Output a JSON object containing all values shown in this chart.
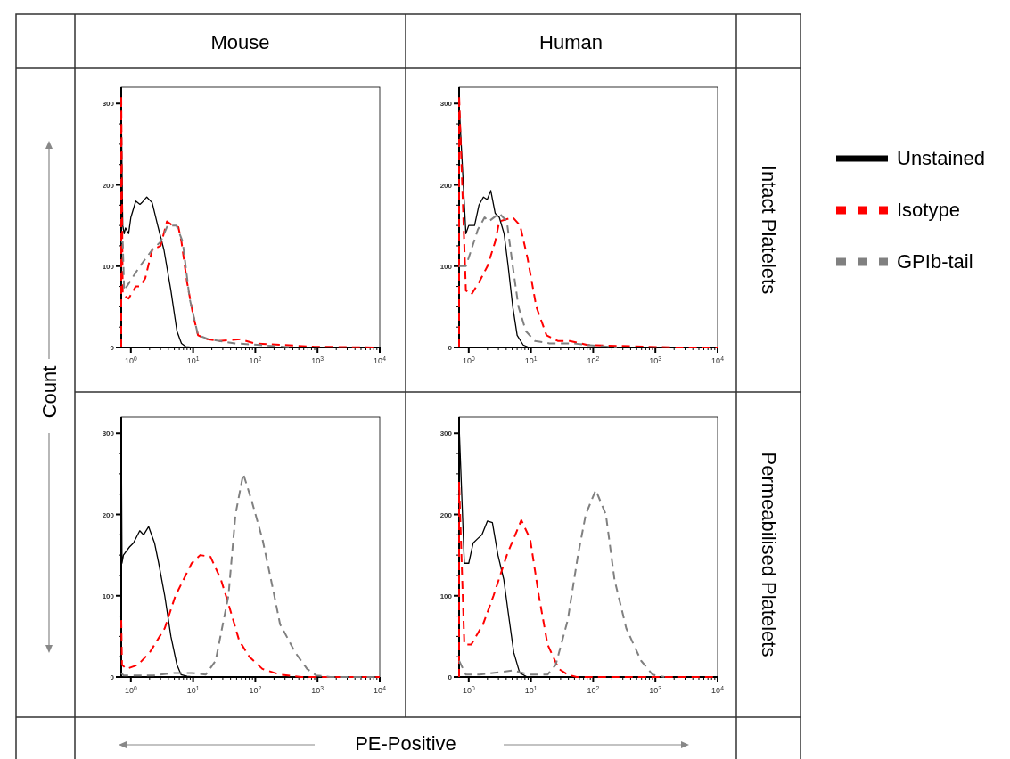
{
  "chart_data": [
    {
      "type": "line",
      "title": "Mouse",
      "ylabel": "Count",
      "xlim": [
        0.7,
        10000
      ],
      "ylim": [
        0,
        320
      ],
      "log": "x",
      "legend": false,
      "xticks": [
        {
          "value": 1,
          "label": "10$^{0}$"
        },
        {
          "value": 2,
          "label": null
        },
        {
          "value": 3,
          "label": null
        },
        {
          "value": 4,
          "label": null
        },
        {
          "value": 5,
          "label": null
        },
        {
          "value": 6,
          "label": null
        },
        {
          "value": 7,
          "label": null
        },
        {
          "value": 8,
          "label": null
        },
        {
          "value": 9,
          "label": null
        },
        {
          "value": 10,
          "label": "10$^{1}$"
        },
        {
          "value": 20,
          "label": null
        },
        {
          "value": 30,
          "label": null
        },
        {
          "value": 40,
          "label": null
        },
        {
          "value": 50,
          "label": null
        },
        {
          "value": 60,
          "label": null
        },
        {
          "value": 70,
          "label": null
        },
        {
          "value": 80,
          "label": null
        },
        {
          "value": 90,
          "label": null
        },
        {
          "value": 100,
          "label": "10$^{2}$"
        },
        {
          "value": 200,
          "label": null
        },
        {
          "value": 300,
          "label": null
        },
        {
          "value": 400,
          "label": null
        },
        {
          "value": 500,
          "label": null
        },
        {
          "value": 600,
          "label": null
        },
        {
          "value": 700,
          "label": null
        },
        {
          "value": 800,
          "label": null
        },
        {
          "value": 900,
          "label": null
        },
        {
          "value": 1000,
          "label": "10$^{3}$"
        },
        {
          "value": 2000,
          "label": null
        },
        {
          "value": 3000,
          "label": null
        },
        {
          "value": 4000,
          "label": null
        },
        {
          "value": 5000,
          "label": null
        },
        {
          "value": 6000,
          "label": null
        },
        {
          "value": 7000,
          "label": null
        },
        {
          "value": 8000,
          "label": null
        },
        {
          "value": 9000,
          "label": null
        },
        {
          "value": 10000,
          "label": "10$^{4}$"
        }
      ],
      "yticks": [
        0,
        {
          "value": 25,
          "label": null
        },
        {
          "value": 50,
          "label": null
        },
        {
          "value": 75,
          "label": null
        },
        100,
        {
          "value": 125,
          "label": null
        },
        {
          "value": 150,
          "label": null
        },
        {
          "value": 175,
          "label": null
        },
        200,
        {
          "value": 225,
          "label": null
        },
        {
          "value": 250,
          "label": null
        },
        {
          "value": 275,
          "label": null
        },
        300
      ],
      "series": [
        {
          "color": "#000000",
          "line_style": "solid",
          "x": [
            0.7,
            0.7,
            0.74,
            0.78,
            0.82,
            0.92,
            1.0,
            1.2,
            1.4,
            1.5,
            1.8,
            2.2,
            2.7,
            3.4,
            4.4,
            5.5,
            6.5,
            7.6,
            10
          ],
          "values": [
            0,
            300,
            150,
            140,
            147,
            140,
            160,
            180,
            176,
            178,
            185,
            178,
            150,
            120,
            70,
            20,
            5,
            1,
            0
          ]
        },
        {
          "color": "#ff0000",
          "line_style": "dashed",
          "x": [
            0.7,
            0.7,
            0.74,
            0.92,
            1.2,
            1.4,
            1.7,
            2.2,
            3.0,
            3.8,
            4.7,
            5.8,
            6.5,
            8.0,
            10,
            12,
            17,
            26,
            57,
            98,
            290,
            860,
            8900
          ],
          "values": [
            0,
            310,
            65,
            60,
            75,
            75,
            85,
            120,
            125,
            155,
            150,
            148,
            130,
            80,
            40,
            15,
            10,
            8,
            10,
            5,
            3,
            1,
            0
          ]
        },
        {
          "color": "#808080",
          "line_style": "dashed",
          "x": [
            0.7,
            0.74,
            0.78,
            1.4,
            2.2,
            3.0,
            3.9,
            5.4,
            6.8,
            8.8,
            12,
            18,
            47,
            120,
            400
          ],
          "values": [
            130,
            130,
            70,
            100,
            120,
            130,
            150,
            150,
            130,
            60,
            15,
            10,
            5,
            3,
            0
          ]
        }
      ]
    },
    {
      "type": "line",
      "title": "Human",
      "y2label": "Intact Platelets",
      "xlim": [
        0.7,
        10000
      ],
      "ylim": [
        0,
        320
      ],
      "log": "x",
      "legend": "right",
      "xticks": [
        {
          "value": 1,
          "label": "10$^{0}$"
        },
        {
          "value": 2,
          "label": null
        },
        {
          "value": 3,
          "label": null
        },
        {
          "value": 4,
          "label": null
        },
        {
          "value": 5,
          "label": null
        },
        {
          "value": 6,
          "label": null
        },
        {
          "value": 7,
          "label": null
        },
        {
          "value": 8,
          "label": null
        },
        {
          "value": 9,
          "label": null
        },
        {
          "value": 10,
          "label": "10$^{1}$"
        },
        {
          "value": 20,
          "label": null
        },
        {
          "value": 30,
          "label": null
        },
        {
          "value": 40,
          "label": null
        },
        {
          "value": 50,
          "label": null
        },
        {
          "value": 60,
          "label": null
        },
        {
          "value": 70,
          "label": null
        },
        {
          "value": 80,
          "label": null
        },
        {
          "value": 90,
          "label": null
        },
        {
          "value": 100,
          "label": "10$^{2}$"
        },
        {
          "value": 200,
          "label": null
        },
        {
          "value": 300,
          "label": null
        },
        {
          "value": 400,
          "label": null
        },
        {
          "value": 500,
          "label": null
        },
        {
          "value": 600,
          "label": null
        },
        {
          "value": 700,
          "label": null
        },
        {
          "value": 800,
          "label": null
        },
        {
          "value": 900,
          "label": null
        },
        {
          "value": 1000,
          "label": "10$^{3}$"
        },
        {
          "value": 2000,
          "label": null
        },
        {
          "value": 3000,
          "label": null
        },
        {
          "value": 4000,
          "label": null
        },
        {
          "value": 5000,
          "label": null
        },
        {
          "value": 6000,
          "label": null
        },
        {
          "value": 7000,
          "label": null
        },
        {
          "value": 8000,
          "label": null
        },
        {
          "value": 9000,
          "label": null
        },
        {
          "value": 10000,
          "label": "10$^{4}$"
        }
      ],
      "yticks": [
        0,
        {
          "value": 25,
          "label": null
        },
        {
          "value": 50,
          "label": null
        },
        {
          "value": 75,
          "label": null
        },
        100,
        {
          "value": 125,
          "label": null
        },
        {
          "value": 150,
          "label": null
        },
        {
          "value": 175,
          "label": null
        },
        200,
        {
          "value": 225,
          "label": null
        },
        {
          "value": 250,
          "label": null
        },
        {
          "value": 275,
          "label": null
        },
        300
      ],
      "series": [
        {
          "name": "Unstained",
          "color": "#000000",
          "line_style": "solid",
          "x": [
            0.7,
            0.7,
            0.9,
            1.0,
            1.24,
            1.46,
            1.72,
            1.98,
            2.26,
            2.66,
            3.1,
            3.7,
            4.3,
            5.1,
            6.0,
            7.5,
            9.3
          ],
          "values": [
            0,
            300,
            140,
            150,
            150,
            175,
            185,
            182,
            193,
            165,
            160,
            140,
            100,
            50,
            15,
            3,
            0
          ]
        },
        {
          "name": "Isotype",
          "color": "#ff0000",
          "line_style": "dashed",
          "x": [
            0.7,
            0.7,
            0.9,
            1.1,
            1.46,
            2.0,
            2.66,
            3.1,
            5.1,
            6.7,
            8.8,
            12.2,
            17.8,
            27,
            42,
            81,
            240,
            2100,
            10000
          ],
          "values": [
            0,
            310,
            70,
            65,
            80,
            100,
            130,
            155,
            160,
            150,
            110,
            50,
            15,
            8,
            8,
            3,
            2,
            0,
            0
          ]
        },
        {
          "name": "GPIb-tail",
          "color": "#808080",
          "line_style": "dashed",
          "x": [
            0.7,
            0.9,
            1.1,
            1.4,
            1.8,
            2.1,
            3.1,
            4.1,
            5.1,
            6.3,
            8.3,
            11.5,
            19.8,
            47,
            81,
            240
          ],
          "values": [
            100,
            100,
            120,
            145,
            160,
            155,
            165,
            155,
            100,
            50,
            20,
            8,
            5,
            5,
            3,
            0
          ]
        }
      ]
    },
    {
      "type": "line",
      "xlabel": "PE-Positive",
      "xlim": [
        0.7,
        10000
      ],
      "ylim": [
        0,
        320
      ],
      "log": "x",
      "legend": false,
      "xticks": [
        {
          "value": 1,
          "label": "10$^{0}$"
        },
        {
          "value": 2,
          "label": null
        },
        {
          "value": 3,
          "label": null
        },
        {
          "value": 4,
          "label": null
        },
        {
          "value": 5,
          "label": null
        },
        {
          "value": 6,
          "label": null
        },
        {
          "value": 7,
          "label": null
        },
        {
          "value": 8,
          "label": null
        },
        {
          "value": 9,
          "label": null
        },
        {
          "value": 10,
          "label": "10$^{1}$"
        },
        {
          "value": 20,
          "label": null
        },
        {
          "value": 30,
          "label": null
        },
        {
          "value": 40,
          "label": null
        },
        {
          "value": 50,
          "label": null
        },
        {
          "value": 60,
          "label": null
        },
        {
          "value": 70,
          "label": null
        },
        {
          "value": 80,
          "label": null
        },
        {
          "value": 90,
          "label": null
        },
        {
          "value": 100,
          "label": "10$^{2}$"
        },
        {
          "value": 200,
          "label": null
        },
        {
          "value": 300,
          "label": null
        },
        {
          "value": 400,
          "label": null
        },
        {
          "value": 500,
          "label": null
        },
        {
          "value": 600,
          "label": null
        },
        {
          "value": 700,
          "label": null
        },
        {
          "value": 800,
          "label": null
        },
        {
          "value": 900,
          "label": null
        },
        {
          "value": 1000,
          "label": "10$^{3}$"
        },
        {
          "value": 2000,
          "label": null
        },
        {
          "value": 3000,
          "label": null
        },
        {
          "value": 4000,
          "label": null
        },
        {
          "value": 5000,
          "label": null
        },
        {
          "value": 6000,
          "label": null
        },
        {
          "value": 7000,
          "label": null
        },
        {
          "value": 8000,
          "label": null
        },
        {
          "value": 9000,
          "label": null
        },
        {
          "value": 10000,
          "label": "10$^{4}$"
        }
      ],
      "yticks": [
        0,
        {
          "value": 25,
          "label": null
        },
        {
          "value": 50,
          "label": null
        },
        {
          "value": 75,
          "label": null
        },
        100,
        {
          "value": 125,
          "label": null
        },
        {
          "value": 150,
          "label": null
        },
        {
          "value": 175,
          "label": null
        },
        200,
        {
          "value": 225,
          "label": null
        },
        {
          "value": 250,
          "label": null
        },
        {
          "value": 275,
          "label": null
        },
        300
      ],
      "series": [
        {
          "color": "#000000",
          "line_style": "solid",
          "x": [
            0.7,
            0.7,
            0.72,
            0.76,
            0.95,
            1.1,
            1.39,
            1.6,
            1.93,
            2.4,
            2.8,
            3.5,
            4.4,
            5.5,
            6.4,
            8.0,
            10
          ],
          "values": [
            0,
            310,
            140,
            150,
            160,
            165,
            180,
            175,
            185,
            165,
            140,
            100,
            50,
            15,
            3,
            1,
            0
          ]
        },
        {
          "color": "#ff0000",
          "line_style": "dashed",
          "x": [
            0.7,
            0.72,
            0.85,
            1.3,
            2.0,
            3.5,
            5.2,
            9.5,
            13,
            19,
            28,
            37,
            55,
            80,
            130,
            250,
            550,
            10000
          ],
          "values": [
            70,
            15,
            10,
            15,
            30,
            60,
            100,
            140,
            150,
            148,
            120,
            90,
            45,
            25,
            10,
            3,
            0,
            0
          ]
        },
        {
          "color": "#808080",
          "line_style": "dashed",
          "x": [
            0.7,
            0.76,
            2.3,
            4.9,
            9.5,
            16,
            23,
            37,
            48,
            64,
            85,
            130,
            190,
            250,
            440,
            680,
            950,
            1600,
            10000
          ],
          "values": [
            5,
            2,
            2,
            5,
            5,
            3,
            20,
            100,
            200,
            250,
            220,
            170,
            110,
            65,
            30,
            10,
            2,
            0,
            0
          ]
        }
      ]
    },
    {
      "type": "line",
      "y2label": "Permeabilised Platelets",
      "xlim": [
        0.7,
        10000
      ],
      "ylim": [
        0,
        320
      ],
      "log": "x",
      "legend": false,
      "xticks": [
        {
          "value": 1,
          "label": "10$^{0}$"
        },
        {
          "value": 2,
          "label": null
        },
        {
          "value": 3,
          "label": null
        },
        {
          "value": 4,
          "label": null
        },
        {
          "value": 5,
          "label": null
        },
        {
          "value": 6,
          "label": null
        },
        {
          "value": 7,
          "label": null
        },
        {
          "value": 8,
          "label": null
        },
        {
          "value": 9,
          "label": null
        },
        {
          "value": 10,
          "label": "10$^{1}$"
        },
        {
          "value": 20,
          "label": null
        },
        {
          "value": 30,
          "label": null
        },
        {
          "value": 40,
          "label": null
        },
        {
          "value": 50,
          "label": null
        },
        {
          "value": 60,
          "label": null
        },
        {
          "value": 70,
          "label": null
        },
        {
          "value": 80,
          "label": null
        },
        {
          "value": 90,
          "label": null
        },
        {
          "value": 100,
          "label": "10$^{2}$"
        },
        {
          "value": 200,
          "label": null
        },
        {
          "value": 300,
          "label": null
        },
        {
          "value": 400,
          "label": null
        },
        {
          "value": 500,
          "label": null
        },
        {
          "value": 600,
          "label": null
        },
        {
          "value": 700,
          "label": null
        },
        {
          "value": 800,
          "label": null
        },
        {
          "value": 900,
          "label": null
        },
        {
          "value": 1000,
          "label": "10$^{3}$"
        },
        {
          "value": 2000,
          "label": null
        },
        {
          "value": 3000,
          "label": null
        },
        {
          "value": 4000,
          "label": null
        },
        {
          "value": 5000,
          "label": null
        },
        {
          "value": 6000,
          "label": null
        },
        {
          "value": 7000,
          "label": null
        },
        {
          "value": 8000,
          "label": null
        },
        {
          "value": 9000,
          "label": null
        },
        {
          "value": 10000,
          "label": "10$^{4}$"
        }
      ],
      "yticks": [
        0,
        {
          "value": 25,
          "label": null
        },
        {
          "value": 50,
          "label": null
        },
        {
          "value": 75,
          "label": null
        },
        100,
        {
          "value": 125,
          "label": null
        },
        {
          "value": 150,
          "label": null
        },
        {
          "value": 175,
          "label": null
        },
        200,
        {
          "value": 225,
          "label": null
        },
        {
          "value": 250,
          "label": null
        },
        {
          "value": 275,
          "label": null
        },
        300
      ],
      "series": [
        {
          "color": "#000000",
          "line_style": "solid",
          "x": [
            0.7,
            0.7,
            0.85,
            1.0,
            1.18,
            1.38,
            1.63,
            2.0,
            2.4,
            2.95,
            3.66,
            4.3,
            5.3,
            6.6,
            8.7
          ],
          "values": [
            0,
            310,
            140,
            140,
            165,
            170,
            175,
            192,
            190,
            150,
            120,
            80,
            30,
            5,
            0
          ]
        },
        {
          "color": "#ff0000",
          "line_style": "dashed",
          "x": [
            0.7,
            0.7,
            0.85,
            1.1,
            1.7,
            2.5,
            4.1,
            7.0,
            9.7,
            13.4,
            18.5,
            28,
            39,
            54,
            10000
          ],
          "values": [
            0,
            240,
            40,
            40,
            65,
            100,
            150,
            193,
            170,
            100,
            40,
            10,
            3,
            0,
            0
          ]
        },
        {
          "color": "#808080",
          "line_style": "dashed",
          "x": [
            0.7,
            0.9,
            1.5,
            5.1,
            9.7,
            18.5,
            25,
            39,
            57,
            76,
            110,
            160,
            220,
            340,
            590,
            900,
            1400
          ],
          "values": [
            20,
            3,
            3,
            8,
            3,
            3,
            15,
            70,
            150,
            200,
            230,
            200,
            120,
            60,
            20,
            3,
            0
          ]
        }
      ]
    }
  ]
}
